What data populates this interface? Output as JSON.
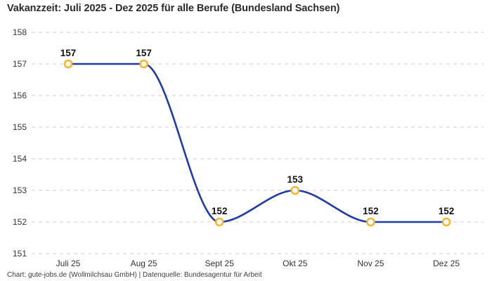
{
  "header": {
    "title": "Vakanzzeit: Juli 2025 - Dez 2025 für alle Berufe (Bundesland Sachsen)"
  },
  "footer": {
    "attribution": "Chart: gute-jobs.de (Wollmilchsau GmbH) | Datenquelle: Bundesagentur für Arbeit"
  },
  "chart_data": {
    "type": "line",
    "title": "Vakanzzeit: Juli 2025 - Dez 2025 für alle Berufe (Bundesland Sachsen)",
    "categories": [
      "Juli 25",
      "Aug 25",
      "Sept 25",
      "Okt 25",
      "Nov 25",
      "Dez 25"
    ],
    "values": [
      157,
      157,
      152,
      153,
      152,
      152
    ],
    "xlabel": "",
    "ylabel": "",
    "ylim": [
      151,
      158
    ],
    "yticks": [
      151,
      152,
      153,
      154,
      155,
      156,
      157,
      158
    ],
    "grid": "horizontal-dashed",
    "legend": "none",
    "line_style": "smooth-spline",
    "colors": {
      "line": "#1e3ba8",
      "marker_stroke": "#f3b72d",
      "marker_fill": "#ffffff",
      "grid": "#cccccc",
      "tick_label": "#333333",
      "data_label": "#111111"
    }
  }
}
